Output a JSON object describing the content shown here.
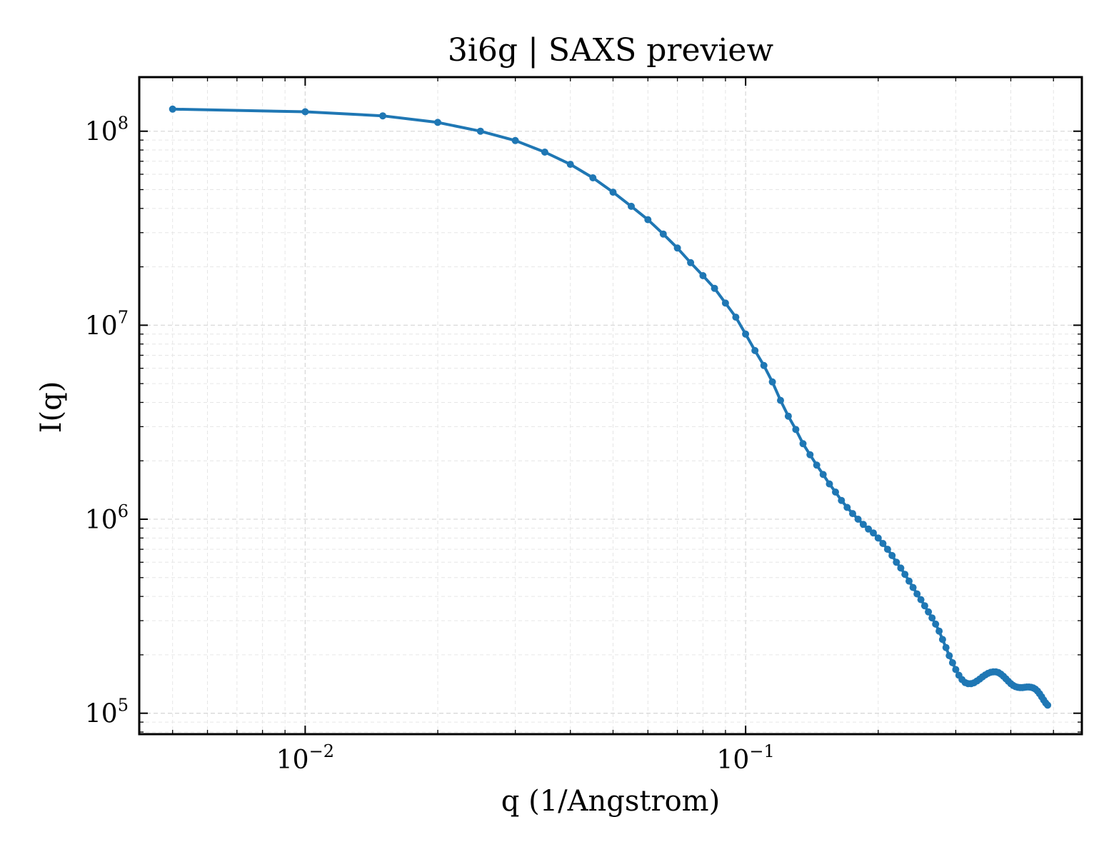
{
  "chart_data": {
    "type": "line",
    "title": "3i6g | SAXS preview",
    "xlabel": "q (1/Angstrom)",
    "ylabel": "I(q)",
    "xscale": "log",
    "yscale": "log",
    "xlim": [
      0.0042,
      0.58
    ],
    "ylim": [
      78000,
      190000000
    ],
    "x_major_ticks": [
      {
        "value": 0.01,
        "base": "10",
        "exp": "−2"
      },
      {
        "value": 0.1,
        "base": "10",
        "exp": "−1"
      }
    ],
    "y_major_ticks": [
      {
        "value": 100000,
        "base": "10",
        "exp": "5"
      },
      {
        "value": 1000000,
        "base": "10",
        "exp": "6"
      },
      {
        "value": 10000000,
        "base": "10",
        "exp": "7"
      },
      {
        "value": 100000000,
        "base": "10",
        "exp": "8"
      }
    ],
    "grid": true,
    "marker": "circle",
    "series": [
      {
        "color": "#1f77b4",
        "points": [
          [
            0.005,
            130000000
          ],
          [
            0.01,
            126000000
          ],
          [
            0.015,
            120000000
          ],
          [
            0.02,
            111000000
          ],
          [
            0.025,
            100000000
          ],
          [
            0.03,
            89500000
          ],
          [
            0.035,
            78000000
          ],
          [
            0.04,
            67500000
          ],
          [
            0.045,
            57500000
          ],
          [
            0.05,
            48500000
          ],
          [
            0.055,
            41000000
          ],
          [
            0.06,
            35000000
          ],
          [
            0.065,
            29500000
          ],
          [
            0.07,
            25000000
          ],
          [
            0.075,
            21000000
          ],
          [
            0.08,
            18000000
          ],
          [
            0.085,
            15500000
          ],
          [
            0.09,
            13000000
          ],
          [
            0.095,
            11000000
          ],
          [
            0.1,
            9000000
          ],
          [
            0.105,
            7400000
          ],
          [
            0.11,
            6200000
          ],
          [
            0.115,
            5100000
          ],
          [
            0.12,
            4100000
          ],
          [
            0.125,
            3400000
          ],
          [
            0.13,
            2900000
          ],
          [
            0.135,
            2450000
          ],
          [
            0.14,
            2150000
          ],
          [
            0.145,
            1900000
          ],
          [
            0.15,
            1700000
          ],
          [
            0.155,
            1520000
          ],
          [
            0.16,
            1380000
          ],
          [
            0.165,
            1250000
          ],
          [
            0.17,
            1150000
          ],
          [
            0.175,
            1070000
          ],
          [
            0.18,
            1000000
          ],
          [
            0.185,
            940000
          ],
          [
            0.19,
            890000
          ],
          [
            0.195,
            850000
          ],
          [
            0.2,
            800000
          ],
          [
            0.205,
            750000
          ],
          [
            0.21,
            700000
          ],
          [
            0.215,
            650000
          ],
          [
            0.22,
            600000
          ],
          [
            0.225,
            560000
          ],
          [
            0.23,
            520000
          ],
          [
            0.235,
            480000
          ],
          [
            0.24,
            445000
          ],
          [
            0.245,
            412000
          ],
          [
            0.25,
            385000
          ],
          [
            0.255,
            358000
          ],
          [
            0.26,
            333000
          ],
          [
            0.265,
            310000
          ],
          [
            0.27,
            288000
          ],
          [
            0.275,
            265000
          ],
          [
            0.28,
            240000
          ],
          [
            0.285,
            218000
          ],
          [
            0.29,
            198000
          ],
          [
            0.295,
            182000
          ],
          [
            0.3,
            168000
          ],
          [
            0.305,
            157000
          ],
          [
            0.31,
            149000
          ],
          [
            0.315,
            144000
          ],
          [
            0.32,
            142000
          ],
          [
            0.325,
            142000
          ],
          [
            0.33,
            143500
          ],
          [
            0.335,
            146500
          ],
          [
            0.34,
            150000
          ],
          [
            0.345,
            154000
          ],
          [
            0.35,
            157500
          ],
          [
            0.355,
            160500
          ],
          [
            0.36,
            162500
          ],
          [
            0.365,
            163500
          ],
          [
            0.37,
            163500
          ],
          [
            0.375,
            162000
          ],
          [
            0.38,
            159000
          ],
          [
            0.385,
            155000
          ],
          [
            0.39,
            150500
          ],
          [
            0.395,
            146000
          ],
          [
            0.4,
            142000
          ],
          [
            0.405,
            139000
          ],
          [
            0.41,
            137000
          ],
          [
            0.415,
            136000
          ],
          [
            0.42,
            135500
          ],
          [
            0.425,
            135500
          ],
          [
            0.43,
            136000
          ],
          [
            0.435,
            136500
          ],
          [
            0.44,
            136500
          ],
          [
            0.445,
            136000
          ],
          [
            0.45,
            135000
          ],
          [
            0.455,
            133000
          ],
          [
            0.46,
            130000
          ],
          [
            0.465,
            126000
          ],
          [
            0.47,
            121500
          ],
          [
            0.475,
            117000
          ],
          [
            0.48,
            113000
          ],
          [
            0.485,
            110000
          ]
        ]
      }
    ]
  }
}
